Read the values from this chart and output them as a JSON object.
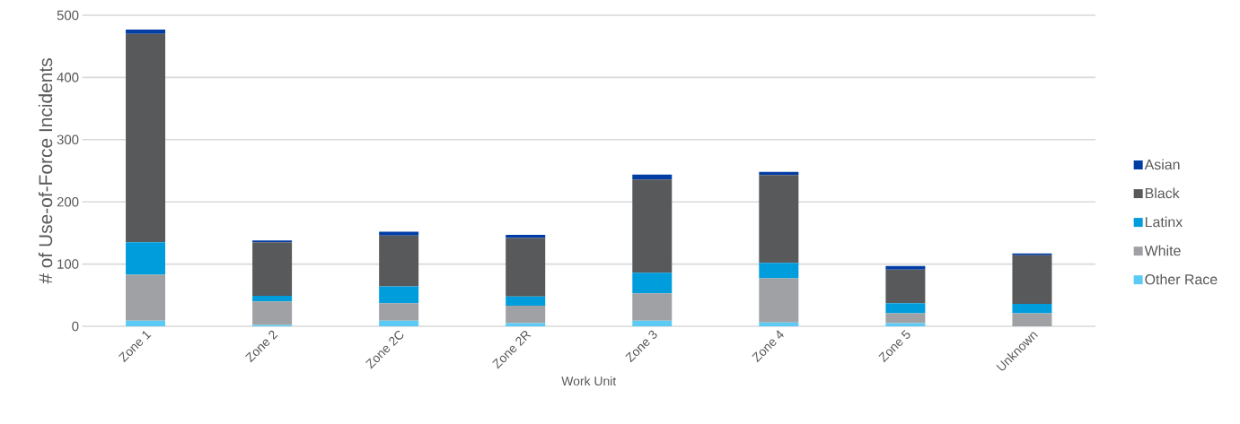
{
  "chart_data": {
    "type": "bar",
    "stacked": true,
    "xlabel": "Work Unit",
    "ylabel": "# of Use-of-Force Incidents",
    "categories": [
      "Zone 1",
      "Zone 2",
      "Zone 2C",
      "Zone 2R",
      "Zone 3",
      "Zone 4",
      "Zone 5",
      "Unknown"
    ],
    "series": [
      {
        "name": "Other Race",
        "color": "#5bcbf5",
        "values": [
          9,
          2,
          9,
          5,
          9,
          6,
          5,
          0
        ]
      },
      {
        "name": "White",
        "color": "#a0a1a4",
        "values": [
          74,
          38,
          28,
          28,
          44,
          71,
          16,
          21
        ]
      },
      {
        "name": "Latinx",
        "color": "#009ddc",
        "values": [
          52,
          9,
          27,
          15,
          33,
          25,
          16,
          15
        ]
      },
      {
        "name": "Black",
        "color": "#58595b",
        "values": [
          335,
          86,
          82,
          94,
          150,
          141,
          54,
          78
        ]
      },
      {
        "name": "Asian",
        "color": "#003da5",
        "values": [
          7,
          3,
          6,
          5,
          8,
          5,
          6,
          3
        ]
      }
    ],
    "ylim": [
      0,
      500
    ],
    "yticks": [
      0,
      100,
      200,
      300,
      400,
      500
    ],
    "grid": "y",
    "legend": "right"
  }
}
